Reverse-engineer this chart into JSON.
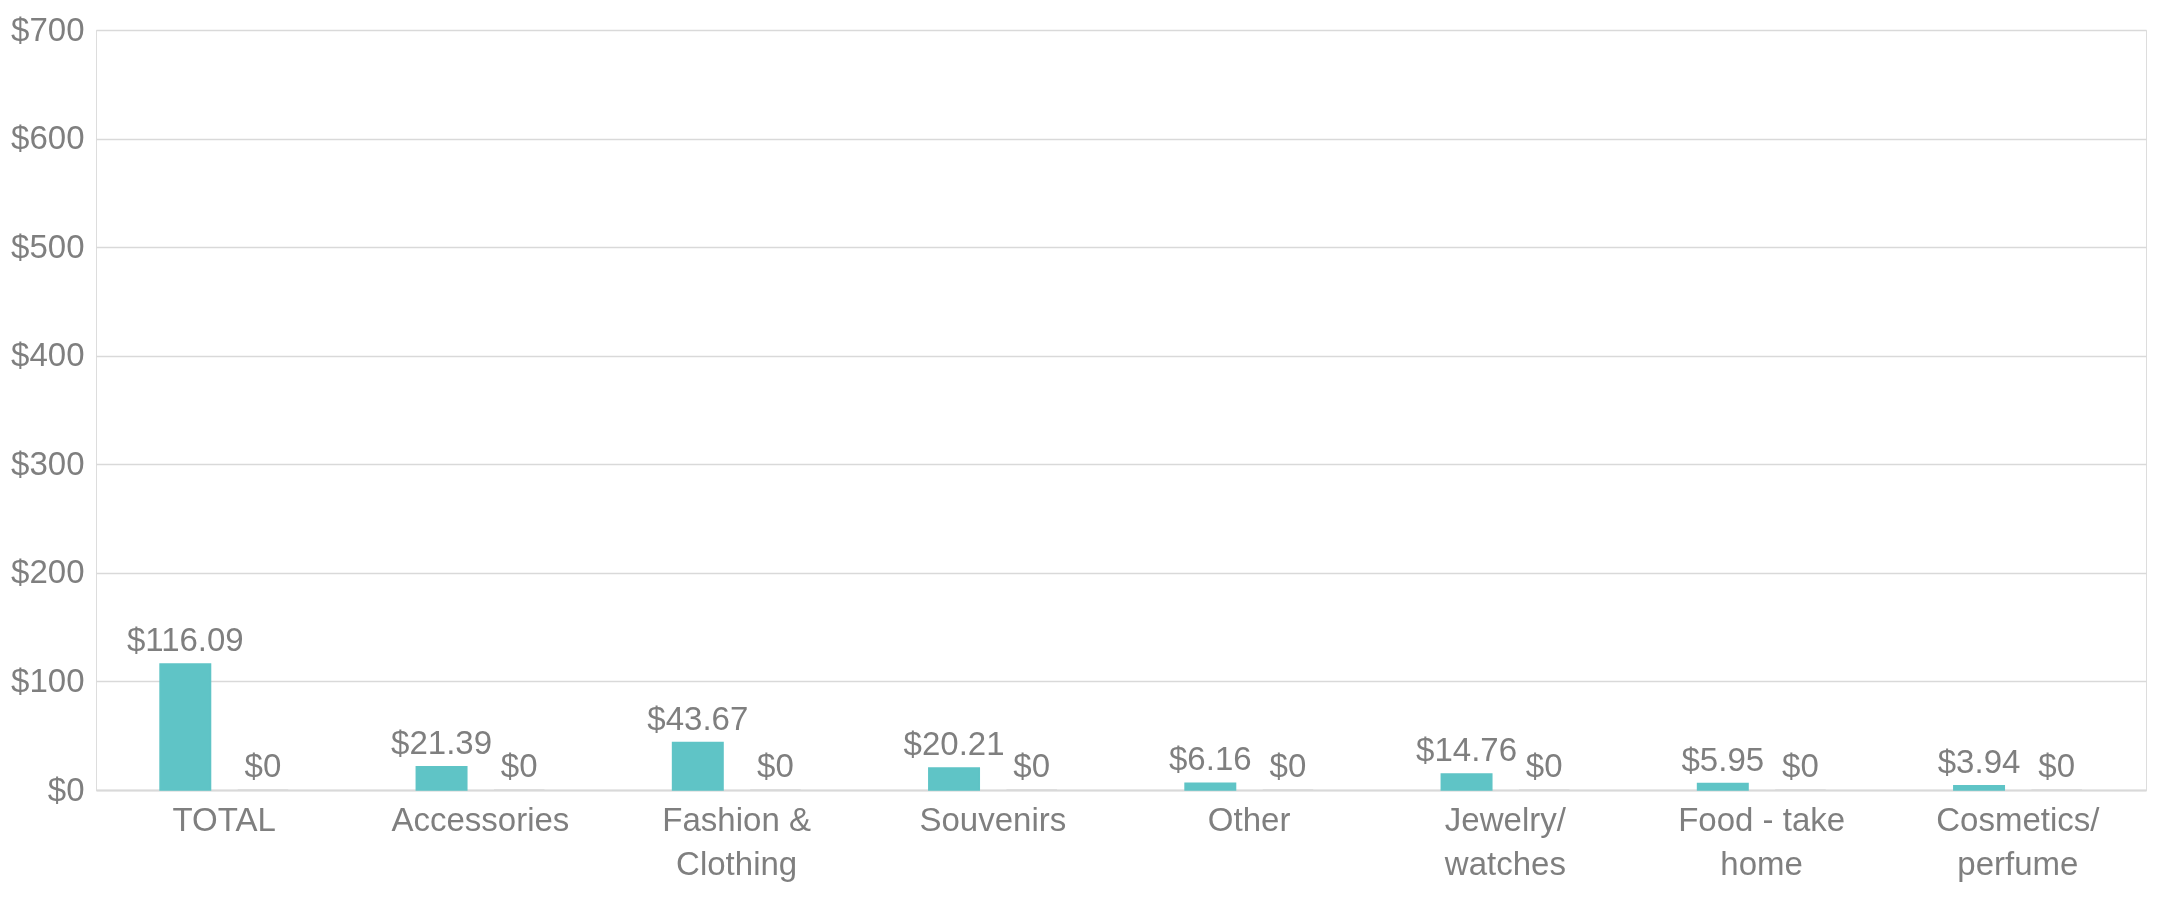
{
  "chart_data": {
    "type": "bar",
    "categories": [
      "TOTAL",
      "Accessories",
      "Fashion & Clothing",
      "Souvenirs",
      "Other",
      "Jewelry/ watches",
      "Food - take home",
      "Cosmetics/ perfume"
    ],
    "series": [
      {
        "color": "#5fc4c6",
        "values": [
          116.09,
          21.39,
          43.67,
          20.21,
          6.16,
          14.76,
          5.95,
          3.94
        ],
        "value_labels": [
          "$116.09",
          "$21.39",
          "$43.67",
          "$20.21",
          "$6.16",
          "$14.76",
          "$5.95",
          "$3.94"
        ]
      },
      {
        "color": "#d9d9d9",
        "values": [
          0,
          0,
          0,
          0,
          0,
          0,
          0,
          0
        ],
        "value_labels": [
          "$0",
          "$0",
          "$0",
          "$0",
          "$0",
          "$0",
          "$0",
          "$0"
        ]
      }
    ],
    "ylim": [
      0,
      700
    ],
    "yticks": [
      {
        "value": 0,
        "label": "$0"
      },
      {
        "value": 100,
        "label": "$100"
      },
      {
        "value": 200,
        "label": "$200"
      },
      {
        "value": 300,
        "label": "$300"
      },
      {
        "value": 400,
        "label": "$400"
      },
      {
        "value": 500,
        "label": "$500"
      },
      {
        "value": 600,
        "label": "$600"
      },
      {
        "value": 700,
        "label": "$700"
      }
    ],
    "grid": "y",
    "legend": false
  }
}
